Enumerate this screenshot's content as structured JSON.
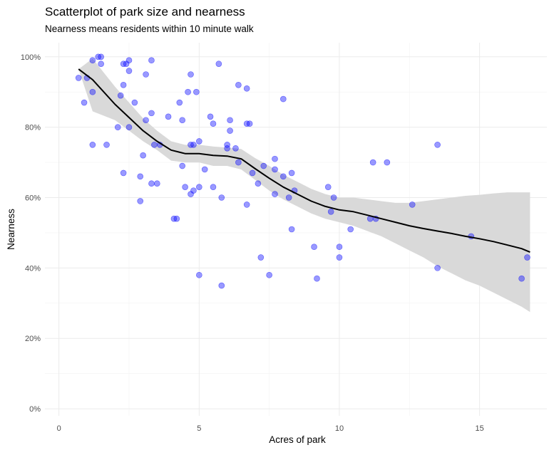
{
  "chart_data": {
    "type": "scatter",
    "title": "Scatterplot of park size and nearness",
    "subtitle": "Nearness means residents within 10 minute walk",
    "xlabel": "Acres of park",
    "ylabel": "Nearness",
    "xlim": [
      -0.5,
      17.4
    ],
    "ylim": [
      -0.02,
      1.04
    ],
    "x_ticks": [
      0,
      5,
      10,
      15
    ],
    "y_ticks": [
      0,
      0.2,
      0.4,
      0.6,
      0.8,
      1.0
    ],
    "x_tick_labels": [
      "0",
      "5",
      "10",
      "15"
    ],
    "y_tick_labels": [
      "0%",
      "20%",
      "40%",
      "60%",
      "80%",
      "100%"
    ],
    "grid": true,
    "point_color": "#0000ff",
    "smooth_color": "#000000",
    "band_color": "#d9d9d9",
    "points": [
      {
        "x": 0.7,
        "y": 0.94
      },
      {
        "x": 0.9,
        "y": 0.87
      },
      {
        "x": 1.0,
        "y": 0.94
      },
      {
        "x": 1.2,
        "y": 0.99
      },
      {
        "x": 1.2,
        "y": 0.9
      },
      {
        "x": 1.2,
        "y": 0.75
      },
      {
        "x": 1.4,
        "y": 1.0
      },
      {
        "x": 1.5,
        "y": 1.0
      },
      {
        "x": 1.5,
        "y": 0.98
      },
      {
        "x": 1.7,
        "y": 0.75
      },
      {
        "x": 2.1,
        "y": 0.8
      },
      {
        "x": 2.2,
        "y": 0.89
      },
      {
        "x": 2.3,
        "y": 0.98
      },
      {
        "x": 2.3,
        "y": 0.92
      },
      {
        "x": 2.3,
        "y": 0.67
      },
      {
        "x": 2.4,
        "y": 0.98
      },
      {
        "x": 2.5,
        "y": 0.99
      },
      {
        "x": 2.5,
        "y": 0.96
      },
      {
        "x": 2.5,
        "y": 0.8
      },
      {
        "x": 2.7,
        "y": 0.87
      },
      {
        "x": 2.9,
        "y": 0.66
      },
      {
        "x": 2.9,
        "y": 0.59
      },
      {
        "x": 3.0,
        "y": 0.72
      },
      {
        "x": 3.1,
        "y": 0.95
      },
      {
        "x": 3.1,
        "y": 0.82
      },
      {
        "x": 3.3,
        "y": 0.99
      },
      {
        "x": 3.3,
        "y": 0.84
      },
      {
        "x": 3.3,
        "y": 0.64
      },
      {
        "x": 3.4,
        "y": 0.75
      },
      {
        "x": 3.5,
        "y": 0.64
      },
      {
        "x": 3.6,
        "y": 0.75
      },
      {
        "x": 3.9,
        "y": 0.83
      },
      {
        "x": 4.1,
        "y": 0.54
      },
      {
        "x": 4.2,
        "y": 0.54
      },
      {
        "x": 4.3,
        "y": 0.87
      },
      {
        "x": 4.4,
        "y": 0.82
      },
      {
        "x": 4.4,
        "y": 0.69
      },
      {
        "x": 4.5,
        "y": 0.63
      },
      {
        "x": 4.6,
        "y": 0.9
      },
      {
        "x": 4.7,
        "y": 0.95
      },
      {
        "x": 4.7,
        "y": 0.75
      },
      {
        "x": 4.7,
        "y": 0.61
      },
      {
        "x": 4.8,
        "y": 0.75
      },
      {
        "x": 4.8,
        "y": 0.62
      },
      {
        "x": 4.9,
        "y": 0.9
      },
      {
        "x": 5.0,
        "y": 0.76
      },
      {
        "x": 5.0,
        "y": 0.63
      },
      {
        "x": 5.0,
        "y": 0.38
      },
      {
        "x": 5.2,
        "y": 0.68
      },
      {
        "x": 5.4,
        "y": 0.83
      },
      {
        "x": 5.5,
        "y": 0.81
      },
      {
        "x": 5.5,
        "y": 0.63
      },
      {
        "x": 5.7,
        "y": 0.98
      },
      {
        "x": 5.8,
        "y": 0.6
      },
      {
        "x": 5.8,
        "y": 0.35
      },
      {
        "x": 6.0,
        "y": 0.75
      },
      {
        "x": 6.0,
        "y": 0.74
      },
      {
        "x": 6.1,
        "y": 0.82
      },
      {
        "x": 6.1,
        "y": 0.79
      },
      {
        "x": 6.3,
        "y": 0.74
      },
      {
        "x": 6.4,
        "y": 0.92
      },
      {
        "x": 6.4,
        "y": 0.7
      },
      {
        "x": 6.7,
        "y": 0.91
      },
      {
        "x": 6.7,
        "y": 0.81
      },
      {
        "x": 6.7,
        "y": 0.58
      },
      {
        "x": 6.8,
        "y": 0.81
      },
      {
        "x": 6.9,
        "y": 0.67
      },
      {
        "x": 7.1,
        "y": 0.64
      },
      {
        "x": 7.2,
        "y": 0.43
      },
      {
        "x": 7.3,
        "y": 0.69
      },
      {
        "x": 7.5,
        "y": 0.38
      },
      {
        "x": 7.7,
        "y": 0.71
      },
      {
        "x": 7.7,
        "y": 0.68
      },
      {
        "x": 7.7,
        "y": 0.61
      },
      {
        "x": 8.0,
        "y": 0.88
      },
      {
        "x": 8.0,
        "y": 0.66
      },
      {
        "x": 8.2,
        "y": 0.6
      },
      {
        "x": 8.3,
        "y": 0.67
      },
      {
        "x": 8.3,
        "y": 0.51
      },
      {
        "x": 8.4,
        "y": 0.62
      },
      {
        "x": 9.1,
        "y": 0.46
      },
      {
        "x": 9.2,
        "y": 0.37
      },
      {
        "x": 9.6,
        "y": 0.63
      },
      {
        "x": 9.7,
        "y": 0.56
      },
      {
        "x": 9.8,
        "y": 0.6
      },
      {
        "x": 10.0,
        "y": 0.46
      },
      {
        "x": 10.0,
        "y": 0.43
      },
      {
        "x": 10.4,
        "y": 0.51
      },
      {
        "x": 11.1,
        "y": 0.54
      },
      {
        "x": 11.2,
        "y": 0.7
      },
      {
        "x": 11.3,
        "y": 0.54
      },
      {
        "x": 11.7,
        "y": 0.7
      },
      {
        "x": 12.6,
        "y": 0.58
      },
      {
        "x": 13.5,
        "y": 0.75
      },
      {
        "x": 13.5,
        "y": 0.4
      },
      {
        "x": 14.7,
        "y": 0.49
      },
      {
        "x": 16.5,
        "y": 0.37
      },
      {
        "x": 16.7,
        "y": 0.43
      }
    ],
    "smooth": [
      {
        "x": 0.7,
        "y": 0.965,
        "lo": 0.965,
        "hi": 0.965
      },
      {
        "x": 1.2,
        "y": 0.935,
        "lo": 0.845,
        "hi": 0.995
      },
      {
        "x": 2.0,
        "y": 0.865,
        "lo": 0.82,
        "hi": 0.915
      },
      {
        "x": 3.0,
        "y": 0.79,
        "lo": 0.76,
        "hi": 0.825
      },
      {
        "x": 3.5,
        "y": 0.76,
        "lo": 0.735,
        "hi": 0.79
      },
      {
        "x": 4.0,
        "y": 0.735,
        "lo": 0.705,
        "hi": 0.76
      },
      {
        "x": 4.5,
        "y": 0.725,
        "lo": 0.7,
        "hi": 0.75
      },
      {
        "x": 5.0,
        "y": 0.725,
        "lo": 0.7,
        "hi": 0.75
      },
      {
        "x": 5.5,
        "y": 0.72,
        "lo": 0.69,
        "hi": 0.745
      },
      {
        "x": 6.0,
        "y": 0.718,
        "lo": 0.69,
        "hi": 0.742
      },
      {
        "x": 6.5,
        "y": 0.71,
        "lo": 0.68,
        "hi": 0.738
      },
      {
        "x": 7.0,
        "y": 0.682,
        "lo": 0.65,
        "hi": 0.712
      },
      {
        "x": 7.5,
        "y": 0.655,
        "lo": 0.62,
        "hi": 0.69
      },
      {
        "x": 8.0,
        "y": 0.63,
        "lo": 0.595,
        "hi": 0.665
      },
      {
        "x": 8.5,
        "y": 0.61,
        "lo": 0.575,
        "hi": 0.645
      },
      {
        "x": 9.0,
        "y": 0.59,
        "lo": 0.555,
        "hi": 0.625
      },
      {
        "x": 9.5,
        "y": 0.575,
        "lo": 0.54,
        "hi": 0.61
      },
      {
        "x": 10.0,
        "y": 0.565,
        "lo": 0.53,
        "hi": 0.6
      },
      {
        "x": 10.5,
        "y": 0.56,
        "lo": 0.52,
        "hi": 0.6
      },
      {
        "x": 11.0,
        "y": 0.55,
        "lo": 0.505,
        "hi": 0.595
      },
      {
        "x": 11.5,
        "y": 0.54,
        "lo": 0.49,
        "hi": 0.59
      },
      {
        "x": 12.0,
        "y": 0.53,
        "lo": 0.47,
        "hi": 0.585
      },
      {
        "x": 12.5,
        "y": 0.52,
        "lo": 0.45,
        "hi": 0.585
      },
      {
        "x": 13.0,
        "y": 0.512,
        "lo": 0.43,
        "hi": 0.59
      },
      {
        "x": 13.5,
        "y": 0.505,
        "lo": 0.405,
        "hi": 0.595
      },
      {
        "x": 14.0,
        "y": 0.498,
        "lo": 0.385,
        "hi": 0.6
      },
      {
        "x": 14.5,
        "y": 0.49,
        "lo": 0.365,
        "hi": 0.605
      },
      {
        "x": 15.0,
        "y": 0.483,
        "lo": 0.35,
        "hi": 0.608
      },
      {
        "x": 15.5,
        "y": 0.475,
        "lo": 0.33,
        "hi": 0.612
      },
      {
        "x": 16.0,
        "y": 0.465,
        "lo": 0.31,
        "hi": 0.615
      },
      {
        "x": 16.5,
        "y": 0.455,
        "lo": 0.29,
        "hi": 0.615
      },
      {
        "x": 16.8,
        "y": 0.445,
        "lo": 0.275,
        "hi": 0.615
      }
    ]
  }
}
